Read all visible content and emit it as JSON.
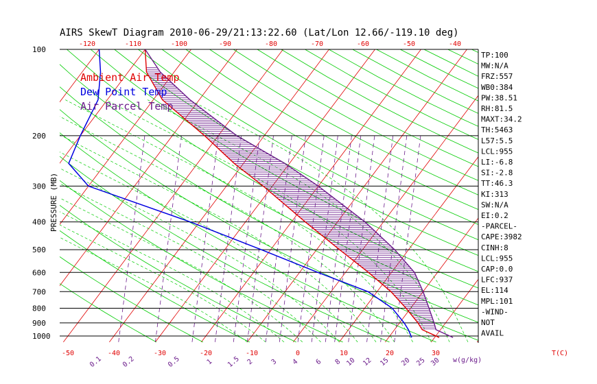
{
  "title": "AIRS SkewT Diagram 2010-06-29/21:13:22.60 (Lat/Lon 12.66/-119.10 deg)",
  "ylabel": "PRESSURE (MB)",
  "xlabel_right": "T(C)",
  "mixing_label": "w(g/kg)",
  "legend": [
    {
      "label": "Ambient Air Temp",
      "color": "#e00000"
    },
    {
      "label": "Dew Point Temp",
      "color": "#0000e0"
    },
    {
      "label": "Air Parcel Temp",
      "color": "#6a1a8a"
    }
  ],
  "colors": {
    "isotherm": "#e00000",
    "dry_adiabat": "#00cc00",
    "moist_adiabat": "#00cc00",
    "mixing_ratio": "#6a1a8a",
    "isobar": "#000000",
    "cape_hatch": "#6a1a8a"
  },
  "top_ticks": [
    "-120",
    "-110",
    "-100",
    "-90",
    "-80",
    "-70",
    "-60",
    "-50",
    "-40"
  ],
  "bottom_ticks": [
    "-50",
    "-40",
    "-30",
    "-20",
    "-10",
    "0",
    "10",
    "20",
    "30"
  ],
  "mixing_ratio_labels": [
    "0.1",
    "0.2",
    "0.5",
    "1",
    "1.5",
    "2",
    "3",
    "4",
    "6",
    "8",
    "10",
    "12",
    "15",
    "20",
    "25",
    "30"
  ],
  "pressure_labels": [
    "100",
    "200",
    "300",
    "400",
    "500",
    "600",
    "700",
    "800",
    "900",
    "1000"
  ],
  "indices": [
    "TP:100",
    "MW:N/A",
    "FRZ:557",
    "WB0:384",
    "PW:38.51",
    "RH:81.5",
    "MAXT:34.2",
    "TH:5463",
    "L57:5.5",
    "LCL:955",
    "LI:-6.8",
    "SI:-2.8",
    "TT:46.3",
    "KI:313",
    "SW:N/A",
    "EI:0.2",
    "-PARCEL-",
    "CAPE:3982",
    "CINH:8",
    "LCL:955",
    "CAP:0.0",
    "LFC:937",
    "EL:114",
    "MPL:101",
    "-WIND-",
    "NOT",
    "AVAIL"
  ],
  "chart_data": {
    "type": "line",
    "title": "AIRS SkewT Diagram 2010-06-29/21:13:22.60 (Lat/Lon 12.66/-119.10 deg)",
    "ylabel": "PRESSURE (MB)",
    "y_scale": "log",
    "ylim": [
      1050,
      100
    ],
    "xlim_bottom_T": [
      -50,
      30
    ],
    "xlim_top_T": [
      -120,
      -40
    ],
    "isobars": [
      100,
      200,
      300,
      400,
      500,
      600,
      700,
      800,
      900,
      1000
    ],
    "series": [
      {
        "name": "Ambient Air Temp",
        "points": [
          [
            1012,
            31
          ],
          [
            950,
            26
          ],
          [
            900,
            24
          ],
          [
            800,
            19
          ],
          [
            700,
            13
          ],
          [
            600,
            5
          ],
          [
            500,
            -5
          ],
          [
            400,
            -17
          ],
          [
            300,
            -32
          ],
          [
            250,
            -42
          ],
          [
            200,
            -53
          ],
          [
            150,
            -68
          ],
          [
            120,
            -76
          ],
          [
            100,
            -80
          ]
        ]
      },
      {
        "name": "Dew Point Temp",
        "points": [
          [
            1012,
            25
          ],
          [
            950,
            23
          ],
          [
            900,
            21
          ],
          [
            800,
            16
          ],
          [
            700,
            8
          ],
          [
            600,
            -6
          ],
          [
            500,
            -22
          ],
          [
            400,
            -42
          ],
          [
            300,
            -70
          ],
          [
            250,
            -78
          ],
          [
            200,
            -80
          ],
          [
            150,
            -82
          ],
          [
            120,
            -86
          ],
          [
            100,
            -90
          ]
        ]
      },
      {
        "name": "Air Parcel Temp",
        "points": [
          [
            1012,
            34
          ],
          [
            950,
            29
          ],
          [
            900,
            27.5
          ],
          [
            800,
            24
          ],
          [
            700,
            20
          ],
          [
            600,
            15
          ],
          [
            500,
            7
          ],
          [
            400,
            -4
          ],
          [
            300,
            -20
          ],
          [
            250,
            -31
          ],
          [
            200,
            -46
          ],
          [
            150,
            -62
          ],
          [
            120,
            -73
          ],
          [
            100,
            -80
          ]
        ]
      }
    ]
  }
}
